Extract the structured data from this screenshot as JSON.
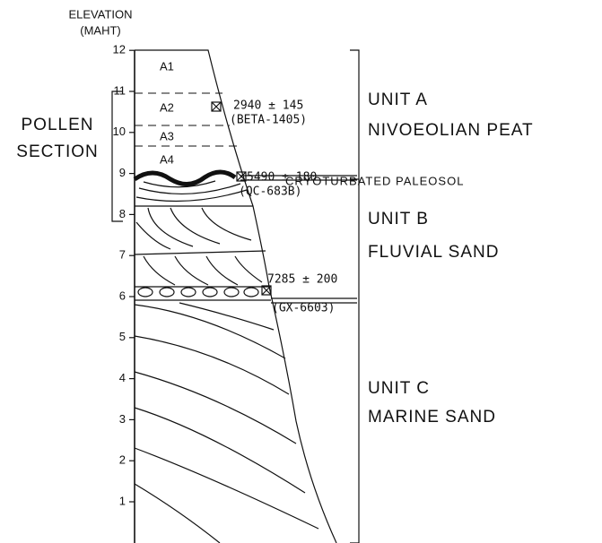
{
  "axis": {
    "title": "ELEVATION",
    "unit": "(MAHT)",
    "ticks": [
      1,
      2,
      3,
      4,
      5,
      6,
      7,
      8,
      9,
      10,
      11,
      12
    ]
  },
  "layers": [
    {
      "label": "A1"
    },
    {
      "label": "A2"
    },
    {
      "label": "A3"
    },
    {
      "label": "A4"
    }
  ],
  "dates": [
    {
      "age": "2940 ± 145",
      "lab": "(BETA-1405)"
    },
    {
      "age": "5490 ± 180",
      "lab": "(QC-683B)"
    },
    {
      "age": "7285 ± 200",
      "lab": "(GX-6603)"
    }
  ],
  "units": [
    {
      "name": "UNIT A",
      "description": "NIVOEOLIAN PEAT"
    },
    {
      "name": "UNIT B",
      "description": "FLUVIAL SAND"
    },
    {
      "name": "UNIT C",
      "description": "MARINE SAND"
    }
  ],
  "contact": "CRYOTURBATED PALEOSOL",
  "pollen": {
    "line1": "POLLEN",
    "line2": "SECTION"
  }
}
